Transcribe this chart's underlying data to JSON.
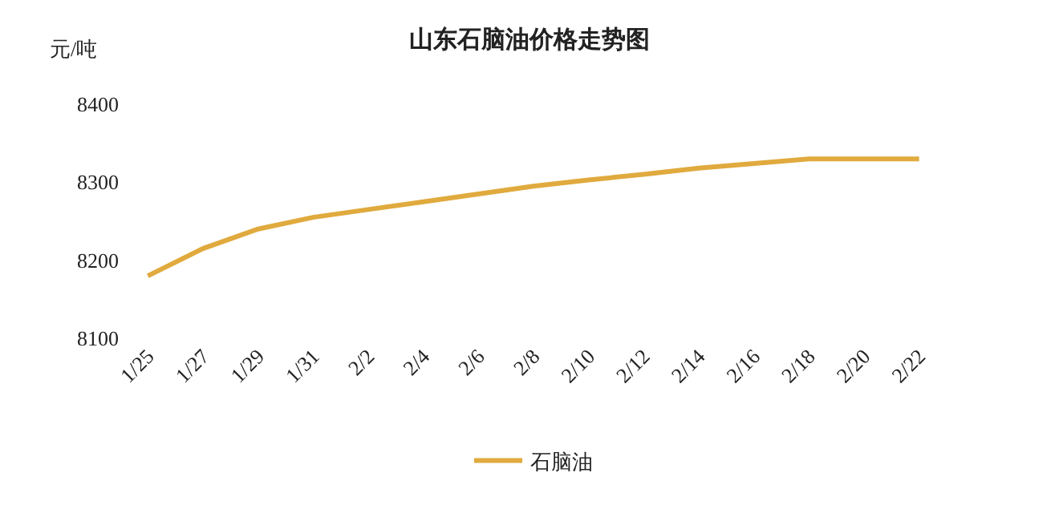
{
  "chart_data": {
    "type": "line",
    "title": "山东石脑油价格走势图",
    "ylabel": "元/吨",
    "categories": [
      "1/25",
      "1/27",
      "1/29",
      "1/31",
      "2/2",
      "2/4",
      "2/6",
      "2/8",
      "2/10",
      "2/12",
      "2/14",
      "2/16",
      "2/18",
      "2/20",
      "2/22"
    ],
    "series": [
      {
        "name": "石脑油",
        "color": "#e0aa3e",
        "values": [
          8180,
          8215,
          8240,
          8255,
          8265,
          8275,
          8285,
          8295,
          8303,
          8310,
          8318,
          8324,
          8330,
          8330,
          8330
        ]
      }
    ],
    "ylim": [
      8100,
      8400
    ],
    "yticks": [
      8100,
      8200,
      8300,
      8400
    ],
    "legend": "bottom",
    "marker": "none",
    "line_style": "solid"
  }
}
